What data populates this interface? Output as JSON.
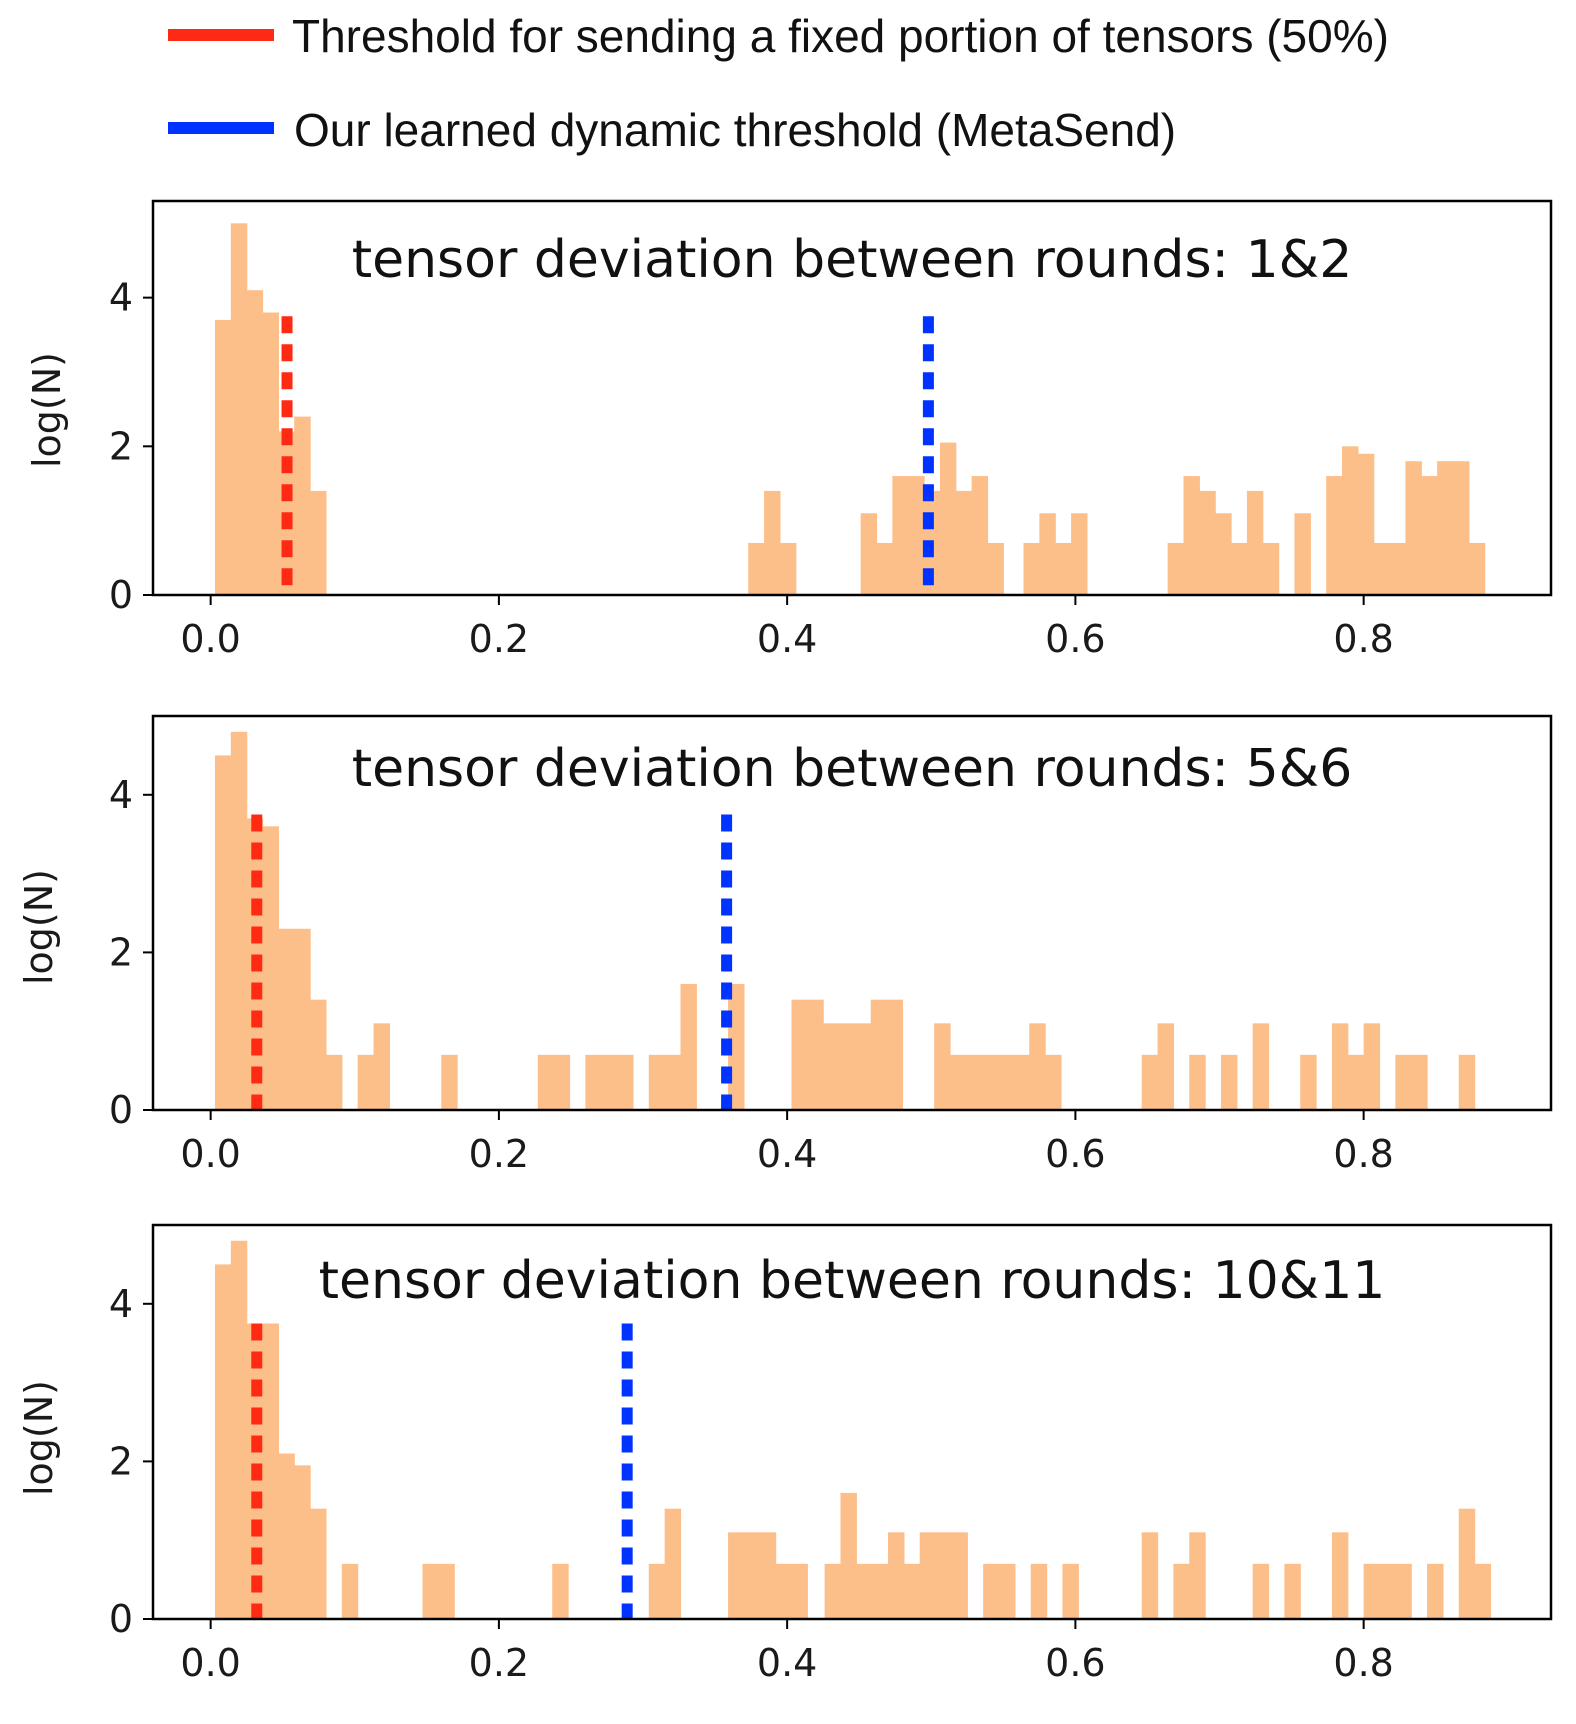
{
  "legend": {
    "items": [
      {
        "label": "Threshold for sending a fixed portion of tensors (50%)",
        "color": "#ff2a14"
      },
      {
        "label": "Our learned dynamic threshold (MetaSend)",
        "color": "#0033ff"
      }
    ]
  },
  "colors": {
    "bar": "#fdbf8a",
    "frame": "#000000"
  },
  "chart_data": [
    {
      "type": "bar",
      "title": "tensor deviation between rounds: 1&2",
      "xlabel": "",
      "ylabel": "log(N)",
      "xlim": [
        -0.04,
        0.93
      ],
      "ylim": [
        0,
        5.3
      ],
      "xticks": [
        "0.0",
        "0.2",
        "0.4",
        "0.6",
        "0.8"
      ],
      "yticks": [
        "0",
        "2",
        "4"
      ],
      "bin_width": 0.011,
      "fixed_threshold": 0.053,
      "metasend_threshold": 0.498,
      "bins": [
        [
          0.003,
          3.7
        ],
        [
          0.014,
          5.0
        ],
        [
          0.025,
          4.1
        ],
        [
          0.036,
          3.8
        ],
        [
          0.047,
          2.2
        ],
        [
          0.058,
          2.4
        ],
        [
          0.069,
          1.4
        ],
        [
          0.373,
          0.7
        ],
        [
          0.384,
          1.4
        ],
        [
          0.395,
          0.7
        ],
        [
          0.451,
          1.1
        ],
        [
          0.462,
          0.7
        ],
        [
          0.473,
          1.6
        ],
        [
          0.484,
          1.6
        ],
        [
          0.495,
          1.4
        ],
        [
          0.506,
          2.05
        ],
        [
          0.517,
          1.4
        ],
        [
          0.528,
          1.6
        ],
        [
          0.539,
          0.7
        ],
        [
          0.564,
          0.7
        ],
        [
          0.575,
          1.1
        ],
        [
          0.586,
          0.7
        ],
        [
          0.597,
          1.1
        ],
        [
          0.664,
          0.7
        ],
        [
          0.675,
          1.6
        ],
        [
          0.686,
          1.4
        ],
        [
          0.697,
          1.1
        ],
        [
          0.708,
          0.7
        ],
        [
          0.719,
          1.4
        ],
        [
          0.73,
          0.7
        ],
        [
          0.752,
          1.1
        ],
        [
          0.774,
          1.6
        ],
        [
          0.785,
          2.0
        ],
        [
          0.796,
          1.9
        ],
        [
          0.807,
          0.7
        ],
        [
          0.818,
          0.7
        ],
        [
          0.829,
          1.8
        ],
        [
          0.84,
          1.6
        ],
        [
          0.851,
          1.8
        ],
        [
          0.862,
          1.8
        ],
        [
          0.873,
          0.7
        ]
      ]
    },
    {
      "type": "bar",
      "title": "tensor deviation between rounds: 5&6",
      "xlabel": "",
      "ylabel": "log(N)",
      "xlim": [
        -0.04,
        0.93
      ],
      "ylim": [
        0,
        5.0
      ],
      "xticks": [
        "0.0",
        "0.2",
        "0.4",
        "0.6",
        "0.8"
      ],
      "yticks": [
        "0",
        "2",
        "4"
      ],
      "bin_width": 0.011,
      "fixed_threshold": 0.032,
      "metasend_threshold": 0.358,
      "bins": [
        [
          0.003,
          4.5
        ],
        [
          0.014,
          4.8
        ],
        [
          0.025,
          3.7
        ],
        [
          0.036,
          3.6
        ],
        [
          0.047,
          2.3
        ],
        [
          0.058,
          2.3
        ],
        [
          0.069,
          1.4
        ],
        [
          0.08,
          0.7
        ],
        [
          0.102,
          0.7
        ],
        [
          0.113,
          1.1
        ],
        [
          0.16,
          0.7
        ],
        [
          0.227,
          0.7
        ],
        [
          0.238,
          0.7
        ],
        [
          0.26,
          0.7
        ],
        [
          0.271,
          0.7
        ],
        [
          0.282,
          0.7
        ],
        [
          0.304,
          0.7
        ],
        [
          0.315,
          0.7
        ],
        [
          0.326,
          1.6
        ],
        [
          0.359,
          1.6
        ],
        [
          0.403,
          1.4
        ],
        [
          0.414,
          1.4
        ],
        [
          0.425,
          1.1
        ],
        [
          0.436,
          1.1
        ],
        [
          0.447,
          1.1
        ],
        [
          0.458,
          1.4
        ],
        [
          0.469,
          1.4
        ],
        [
          0.502,
          1.1
        ],
        [
          0.513,
          0.7
        ],
        [
          0.524,
          0.7
        ],
        [
          0.535,
          0.7
        ],
        [
          0.546,
          0.7
        ],
        [
          0.557,
          0.7
        ],
        [
          0.568,
          1.1
        ],
        [
          0.579,
          0.7
        ],
        [
          0.646,
          0.7
        ],
        [
          0.657,
          1.1
        ],
        [
          0.679,
          0.7
        ],
        [
          0.701,
          0.7
        ],
        [
          0.723,
          1.1
        ],
        [
          0.756,
          0.7
        ],
        [
          0.778,
          1.1
        ],
        [
          0.789,
          0.7
        ],
        [
          0.8,
          1.1
        ],
        [
          0.822,
          0.7
        ],
        [
          0.833,
          0.7
        ],
        [
          0.866,
          0.7
        ]
      ]
    },
    {
      "type": "bar",
      "title": "tensor deviation between rounds: 10&11",
      "xlabel": "",
      "ylabel": "log(N)",
      "xlim": [
        -0.04,
        0.93
      ],
      "ylim": [
        0,
        5.0
      ],
      "xticks": [
        "0.0",
        "0.2",
        "0.4",
        "0.6",
        "0.8"
      ],
      "yticks": [
        "0",
        "2",
        "4"
      ],
      "bin_width": 0.011,
      "fixed_threshold": 0.032,
      "metasend_threshold": 0.289,
      "bins": [
        [
          0.003,
          4.5
        ],
        [
          0.014,
          4.8
        ],
        [
          0.025,
          3.75
        ],
        [
          0.036,
          3.75
        ],
        [
          0.047,
          2.1
        ],
        [
          0.058,
          1.95
        ],
        [
          0.069,
          1.4
        ],
        [
          0.091,
          0.7
        ],
        [
          0.147,
          0.7
        ],
        [
          0.158,
          0.7
        ],
        [
          0.237,
          0.7
        ],
        [
          0.304,
          0.7
        ],
        [
          0.315,
          1.4
        ],
        [
          0.359,
          1.1
        ],
        [
          0.37,
          1.1
        ],
        [
          0.381,
          1.1
        ],
        [
          0.392,
          0.7
        ],
        [
          0.403,
          0.7
        ],
        [
          0.426,
          0.7
        ],
        [
          0.437,
          1.6
        ],
        [
          0.448,
          0.7
        ],
        [
          0.459,
          0.7
        ],
        [
          0.47,
          1.1
        ],
        [
          0.481,
          0.7
        ],
        [
          0.492,
          1.1
        ],
        [
          0.503,
          1.1
        ],
        [
          0.514,
          1.1
        ],
        [
          0.536,
          0.7
        ],
        [
          0.547,
          0.7
        ],
        [
          0.569,
          0.7
        ],
        [
          0.591,
          0.7
        ],
        [
          0.646,
          1.1
        ],
        [
          0.668,
          0.7
        ],
        [
          0.679,
          1.1
        ],
        [
          0.723,
          0.7
        ],
        [
          0.745,
          0.7
        ],
        [
          0.778,
          1.1
        ],
        [
          0.8,
          0.7
        ],
        [
          0.811,
          0.7
        ],
        [
          0.822,
          0.7
        ],
        [
          0.844,
          0.7
        ],
        [
          0.866,
          1.4
        ],
        [
          0.877,
          0.7
        ]
      ]
    }
  ]
}
